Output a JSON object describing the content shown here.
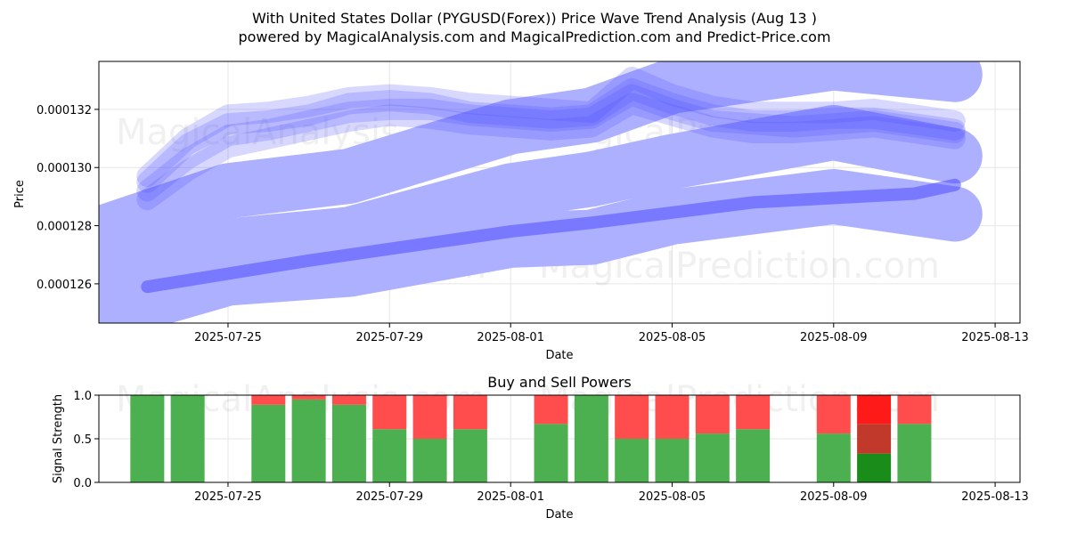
{
  "chart_data": [
    {
      "type": "line",
      "title_line1": "With United States Dollar (PYGUSD(Forex)) Price Wave Trend Analysis (Aug 13 )",
      "title_line2": "powered by MagicalAnalysis.com and MagicalPrediction.com and Predict-Price.com",
      "xlabel": "Date",
      "ylabel": "Price",
      "x_ticks": [
        "2025-07-25",
        "2025-07-29",
        "2025-08-01",
        "2025-08-05",
        "2025-08-09",
        "2025-08-13"
      ],
      "y_ticks": [
        "0.000126",
        "0.000128",
        "0.000130",
        "0.000132"
      ],
      "y_tick_values": [
        0.000126,
        0.000128,
        0.00013,
        0.000132
      ],
      "xlim_days": [
        0,
        22
      ],
      "ylim": [
        0.00012465,
        0.00013365
      ],
      "series": [
        {
          "name": "price-wave-1",
          "x": [
            1,
            2,
            3,
            4,
            5,
            6,
            7,
            8,
            9,
            10,
            11,
            12,
            13,
            14,
            15,
            16,
            17,
            18,
            19,
            20,
            21
          ],
          "y": [
            0.0001292,
            0.0001303,
            0.0001311,
            0.0001313,
            0.0001316,
            0.0001319,
            0.000132,
            0.000132,
            0.0001318,
            0.0001317,
            0.0001316,
            0.0001317,
            0.0001325,
            0.000132,
            0.0001316,
            0.0001315,
            0.0001314,
            0.0001315,
            0.0001316,
            0.0001314,
            0.0001312
          ]
        },
        {
          "name": "price-wave-2",
          "x": [
            1,
            2,
            3,
            4,
            5,
            6,
            7,
            8,
            9,
            10,
            11,
            12,
            13,
            14,
            15,
            16,
            17,
            18,
            19,
            20,
            21
          ],
          "y": [
            0.0001295,
            0.0001308,
            0.0001315,
            0.0001316,
            0.0001318,
            0.0001322,
            0.0001323,
            0.0001322,
            0.0001319,
            0.0001318,
            0.0001317,
            0.0001318,
            0.0001327,
            0.0001322,
            0.0001318,
            0.0001316,
            0.0001316,
            0.0001317,
            0.0001317,
            0.0001315,
            0.0001313
          ]
        },
        {
          "name": "price-wave-3",
          "x": [
            1,
            2,
            3,
            4,
            5,
            6,
            7,
            8,
            9,
            10,
            11,
            12,
            13,
            14,
            15,
            16,
            17,
            18,
            19,
            20,
            21
          ],
          "y": [
            0.0001289,
            0.0001299,
            0.0001307,
            0.000131,
            0.0001313,
            0.0001316,
            0.0001318,
            0.0001317,
            0.0001315,
            0.0001314,
            0.0001313,
            0.0001314,
            0.0001322,
            0.0001318,
            0.0001314,
            0.0001312,
            0.0001312,
            0.0001313,
            0.0001314,
            0.0001312,
            0.000131
          ]
        },
        {
          "name": "price-wave-4",
          "x": [
            1,
            2,
            3,
            4,
            5,
            6,
            7,
            8,
            9,
            10,
            11,
            12,
            13,
            14,
            15,
            16,
            17,
            18,
            19,
            20,
            21
          ],
          "y": [
            0.0001297,
            0.000131,
            0.0001318,
            0.0001319,
            0.0001321,
            0.0001324,
            0.0001325,
            0.0001324,
            0.0001322,
            0.0001321,
            0.000132,
            0.0001319,
            0.0001331,
            0.0001325,
            0.0001321,
            0.0001319,
            0.0001319,
            0.0001319,
            0.000132,
            0.0001318,
            0.0001316
          ]
        },
        {
          "name": "trend-band-top",
          "x": [
            0,
            3,
            6,
            10,
            12,
            14,
            18,
            21
          ],
          "y": [
            0.0001278,
            0.0001292,
            0.0001297,
            0.0001314,
            0.0001318,
            0.0001328,
            0.0001336,
            0.0001332
          ]
        },
        {
          "name": "trend-band-middle",
          "x": [
            0,
            3,
            6,
            10,
            12,
            14,
            18,
            21
          ],
          "y": [
            0.0001264,
            0.0001273,
            0.0001277,
            0.0001292,
            0.0001296,
            0.0001302,
            0.0001312,
            0.0001304
          ]
        },
        {
          "name": "trend-band-bottom",
          "x": [
            0,
            3,
            6,
            10,
            12,
            14,
            18,
            21
          ],
          "y": [
            0.000125,
            0.0001262,
            0.0001265,
            0.0001275,
            0.0001276,
            0.0001283,
            0.000129,
            0.0001284
          ]
        },
        {
          "name": "trend-line-thin",
          "x": [
            1,
            5,
            10,
            12,
            16,
            20,
            21
          ],
          "y": [
            0.0001259,
            0.0001268,
            0.0001278,
            0.0001281,
            0.0001288,
            0.0001291,
            0.0001294
          ]
        }
      ],
      "watermarks": [
        "MagicalAnalysis.com",
        "MagicalPrediction.com",
        "MagicalAnalysis.com",
        "MagicalPrediction.com"
      ]
    },
    {
      "type": "bar",
      "title": "Buy and Sell Powers",
      "xlabel": "Date",
      "ylabel": "Signal Strength",
      "x_ticks": [
        "2025-07-25",
        "2025-07-29",
        "2025-08-01",
        "2025-08-05",
        "2025-08-09",
        "2025-08-13"
      ],
      "y_ticks": [
        "0.0",
        "0.5",
        "1.0"
      ],
      "ylim": [
        0,
        1
      ],
      "bars": [
        {
          "day": 1,
          "buy": 1.0,
          "sell": 0.0
        },
        {
          "day": 2,
          "buy": 1.0,
          "sell": 0.0
        },
        {
          "day": 4,
          "buy": 0.89,
          "sell": 0.11
        },
        {
          "day": 5,
          "buy": 0.95,
          "sell": 0.05
        },
        {
          "day": 6,
          "buy": 0.89,
          "sell": 0.11
        },
        {
          "day": 7,
          "buy": 0.61,
          "sell": 0.39
        },
        {
          "day": 8,
          "buy": 0.5,
          "sell": 0.5
        },
        {
          "day": 9,
          "buy": 0.61,
          "sell": 0.39
        },
        {
          "day": 11,
          "buy": 0.67,
          "sell": 0.33
        },
        {
          "day": 12,
          "buy": 1.0,
          "sell": 0.0
        },
        {
          "day": 13,
          "buy": 0.5,
          "sell": 0.5
        },
        {
          "day": 14,
          "buy": 0.5,
          "sell": 0.5
        },
        {
          "day": 15,
          "buy": 0.56,
          "sell": 0.44
        },
        {
          "day": 16,
          "buy": 0.61,
          "sell": 0.39
        },
        {
          "day": 18,
          "buy": 0.56,
          "sell": 0.44
        },
        {
          "day": 19,
          "buy": 0.33,
          "sell": 0.34,
          "sell_extra": 0.33
        },
        {
          "day": 20,
          "buy": 0.67,
          "sell": 0.33
        }
      ],
      "colors": {
        "buy": "#4caf50",
        "sell": "#ff4c4c",
        "buy_strong": "#1a8c1a",
        "sell_mid": "#c0392b",
        "sell_strong": "#ff1a1a"
      },
      "watermarks": [
        "MagicalAnalysis.com",
        "MagicalPrediction.com"
      ]
    }
  ],
  "colors": {
    "wave": "#4d4dff",
    "band": "#adb0ff",
    "grid": "#e6e6e6"
  }
}
